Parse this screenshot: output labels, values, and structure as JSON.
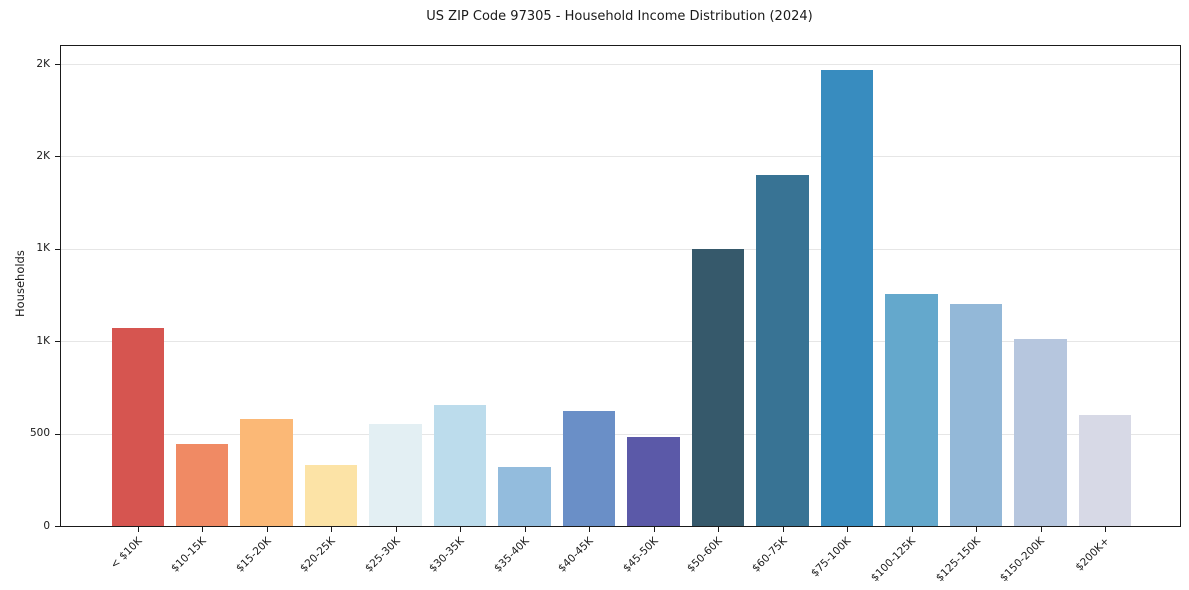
{
  "chart": {
    "title": "US ZIP Code 97305 - Household Income Distribution (2024)",
    "ylabel": "Households"
  },
  "chart_data": {
    "type": "bar",
    "title": "US ZIP Code 97305 - Household Income Distribution (2024)",
    "xlabel": "",
    "ylabel": "Households",
    "categories": [
      "< $10K",
      "$10-15K",
      "$15-20K",
      "$20-25K",
      "$25-30K",
      "$30-35K",
      "$35-40K",
      "$40-45K",
      "$45-50K",
      "$50-60K",
      "$60-75K",
      "$75-100K",
      "$100-125K",
      "$125-150K",
      "$150-200K",
      "$200K+"
    ],
    "values": [
      1070,
      445,
      580,
      330,
      550,
      655,
      320,
      625,
      480,
      1500,
      1900,
      2470,
      1255,
      1200,
      1010,
      600
    ],
    "bar_colors": [
      "#d65550",
      "#f08a64",
      "#fbb876",
      "#fce3a6",
      "#e3eff3",
      "#bcdcec",
      "#93bcdd",
      "#6a8fc7",
      "#5b59a8",
      "#36596b",
      "#387394",
      "#388cbf",
      "#64a8cc",
      "#93b8d8",
      "#b6c6de",
      "#d7d9e6"
    ],
    "ylim": [
      0,
      2600
    ],
    "yticks": [
      {
        "value": 0,
        "label": "0"
      },
      {
        "value": 500,
        "label": "500"
      },
      {
        "value": 1000,
        "label": "1K"
      },
      {
        "value": 1500,
        "label": "1K"
      },
      {
        "value": 2000,
        "label": "2K"
      },
      {
        "value": 2500,
        "label": "2K"
      }
    ],
    "grid": "horizontal gridlines at y ticks only",
    "legend": "none",
    "style_colors": {
      "grid": "#e6e6e6",
      "spine": "#1a1a1a",
      "text": "#1a1a1a",
      "background": "#ffffff"
    }
  }
}
